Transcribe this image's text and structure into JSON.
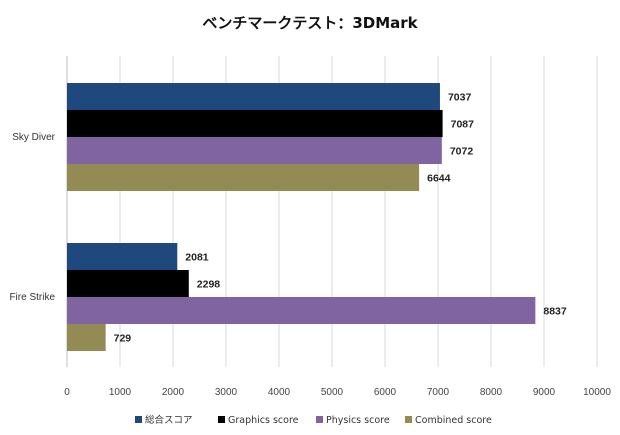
{
  "chart_data": {
    "type": "bar",
    "orientation": "horizontal",
    "title": "ベンチマークテスト：3DMark",
    "categories": [
      "Sky Diver",
      "Fire Strike"
    ],
    "series": [
      {
        "name": "総合スコア",
        "color": "#1f497d",
        "values": [
          7037,
          2081
        ]
      },
      {
        "name": "Graphics score",
        "color": "#000000",
        "values": [
          7087,
          2298
        ]
      },
      {
        "name": "Physics score",
        "color": "#8064a2",
        "values": [
          7072,
          8837
        ]
      },
      {
        "name": "Combined score",
        "color": "#948a54",
        "values": [
          6644,
          729
        ]
      }
    ],
    "xlim": [
      0,
      10000
    ],
    "x_ticks": [
      0,
      1000,
      2000,
      3000,
      4000,
      5000,
      6000,
      7000,
      8000,
      9000,
      10000
    ],
    "grid": true,
    "legend_position": "bottom"
  }
}
